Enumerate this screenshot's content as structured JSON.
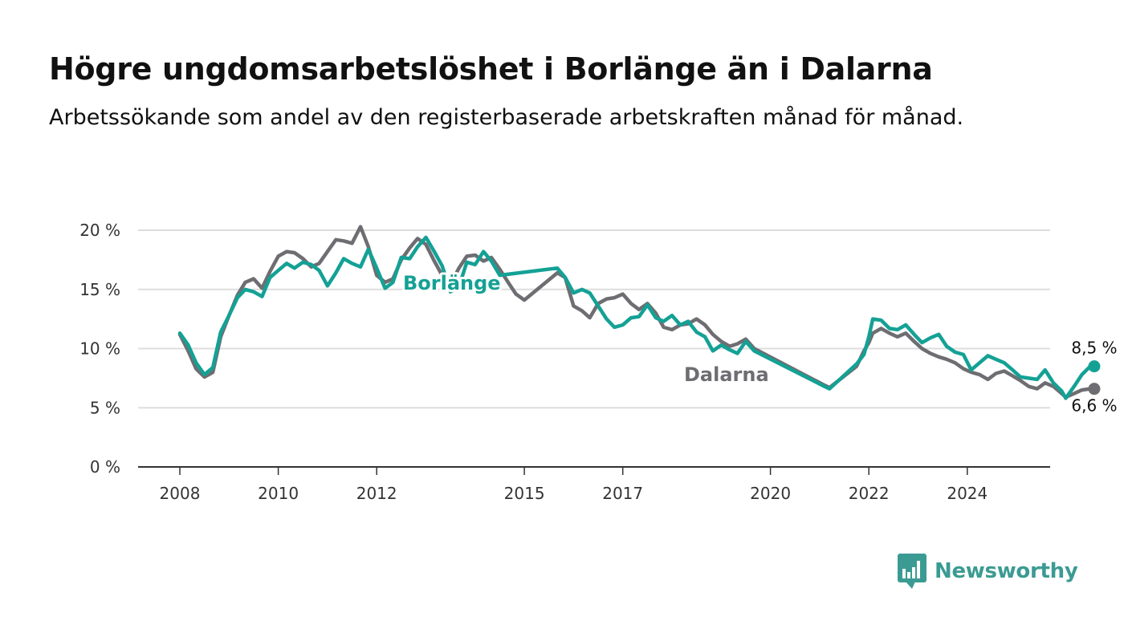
{
  "title": "Högre ungdomsarbetslöshet i Borlänge än i Dalarna",
  "subtitle": "Arbetssökande som andel av den registerbaserade arbetskraften månad för månad.",
  "brand": {
    "name": "Newsworthy",
    "color": "#3b9b93",
    "icon": "bar-chart-speech-bubble-icon"
  },
  "colors": {
    "borlange": "#14a195",
    "dalarna": "#6e6d72",
    "grid": "#dddddd",
    "axis": "#333333"
  },
  "chart_data": {
    "type": "line",
    "title": "Högre ungdomsarbetslöshet i Borlänge än i Dalarna",
    "subtitle": "Arbetssökande som andel av den registerbaserade arbetskraften månad för månad.",
    "xlabel": "",
    "ylabel": "",
    "xlim": [
      2008,
      2025.5
    ],
    "ylim": [
      0,
      20
    ],
    "x_ticks": [
      2008,
      2010,
      2012,
      2015,
      2017,
      2020,
      2022,
      2024
    ],
    "y_ticks": [
      {
        "value": 0,
        "label": "0 %"
      },
      {
        "value": 5,
        "label": "5 %"
      },
      {
        "value": 10,
        "label": "10 %"
      },
      {
        "value": 15,
        "label": "15 %"
      },
      {
        "value": 20,
        "label": "20 %"
      }
    ],
    "grid": "horizontal",
    "legend": "inline labels",
    "series": [
      {
        "name": "Borlänge",
        "color": "#14a195",
        "end_label": "8,5 %",
        "points": [
          [
            2008.0,
            11.3
          ],
          [
            2008.17,
            10.3
          ],
          [
            2008.33,
            8.8
          ],
          [
            2008.5,
            7.8
          ],
          [
            2008.67,
            8.4
          ],
          [
            2008.83,
            11.4
          ],
          [
            2009.0,
            12.8
          ],
          [
            2009.17,
            14.3
          ],
          [
            2009.33,
            15.0
          ],
          [
            2009.5,
            14.8
          ],
          [
            2009.67,
            14.4
          ],
          [
            2009.83,
            16.0
          ],
          [
            2010.0,
            16.6
          ],
          [
            2010.17,
            17.2
          ],
          [
            2010.33,
            16.8
          ],
          [
            2010.5,
            17.3
          ],
          [
            2010.67,
            17.1
          ],
          [
            2010.83,
            16.6
          ],
          [
            2011.0,
            15.3
          ],
          [
            2011.17,
            16.4
          ],
          [
            2011.33,
            17.6
          ],
          [
            2011.5,
            17.2
          ],
          [
            2011.67,
            16.9
          ],
          [
            2011.83,
            18.4
          ],
          [
            2012.0,
            16.8
          ],
          [
            2012.17,
            15.1
          ],
          [
            2012.33,
            15.6
          ],
          [
            2012.5,
            17.7
          ],
          [
            2012.67,
            17.6
          ],
          [
            2012.83,
            18.6
          ],
          [
            2013.0,
            19.4
          ],
          [
            2013.17,
            18.2
          ],
          [
            2013.33,
            17.0
          ],
          [
            2013.5,
            14.8
          ],
          [
            2013.67,
            15.2
          ],
          [
            2013.83,
            17.3
          ],
          [
            2014.0,
            17.1
          ],
          [
            2014.17,
            18.2
          ],
          [
            2014.33,
            17.4
          ],
          [
            2014.5,
            16.2
          ],
          [
            2015.67,
            16.8
          ],
          [
            2015.83,
            16.0
          ],
          [
            2016.0,
            14.7
          ],
          [
            2016.17,
            15.0
          ],
          [
            2016.33,
            14.7
          ],
          [
            2016.5,
            13.6
          ],
          [
            2016.67,
            12.5
          ],
          [
            2016.83,
            11.8
          ],
          [
            2017.0,
            12.0
          ],
          [
            2017.17,
            12.6
          ],
          [
            2017.33,
            12.7
          ],
          [
            2017.5,
            13.7
          ],
          [
            2017.67,
            12.6
          ],
          [
            2017.83,
            12.3
          ],
          [
            2018.0,
            12.8
          ],
          [
            2018.17,
            12.0
          ],
          [
            2018.33,
            12.3
          ],
          [
            2018.5,
            11.4
          ],
          [
            2018.67,
            11.0
          ],
          [
            2018.83,
            9.8
          ],
          [
            2019.0,
            10.3
          ],
          [
            2019.17,
            9.9
          ],
          [
            2019.33,
            9.6
          ],
          [
            2019.5,
            10.6
          ],
          [
            2019.67,
            9.8
          ],
          [
            2021.1,
            6.8
          ],
          [
            2021.2,
            6.6
          ],
          [
            2021.75,
            8.7
          ],
          [
            2021.9,
            9.5
          ],
          [
            2022.0,
            11.0
          ],
          [
            2022.08,
            12.5
          ],
          [
            2022.25,
            12.4
          ],
          [
            2022.42,
            11.7
          ],
          [
            2022.58,
            11.6
          ],
          [
            2022.75,
            12.0
          ],
          [
            2022.92,
            11.2
          ],
          [
            2023.08,
            10.5
          ],
          [
            2023.25,
            10.9
          ],
          [
            2023.42,
            11.2
          ],
          [
            2023.58,
            10.2
          ],
          [
            2023.75,
            9.7
          ],
          [
            2023.92,
            9.5
          ],
          [
            2024.08,
            8.2
          ],
          [
            2024.25,
            8.8
          ],
          [
            2024.42,
            9.4
          ],
          [
            2024.58,
            9.1
          ],
          [
            2024.75,
            8.8
          ],
          [
            2024.92,
            8.2
          ],
          [
            2025.08,
            7.6
          ],
          [
            2025.25,
            7.5
          ],
          [
            2025.42,
            7.4
          ],
          [
            2025.58,
            8.2
          ],
          [
            2025.75,
            7.1
          ],
          [
            2025.92,
            6.4
          ],
          [
            2026.0,
            5.8
          ],
          [
            2026.17,
            6.8
          ],
          [
            2026.33,
            7.8
          ],
          [
            2026.5,
            8.5
          ],
          [
            2026.58,
            8.5
          ]
        ]
      },
      {
        "name": "Dalarna",
        "color": "#6e6d72",
        "end_label": "6,6 %",
        "points": [
          [
            2008.0,
            11.2
          ],
          [
            2008.17,
            9.8
          ],
          [
            2008.33,
            8.3
          ],
          [
            2008.5,
            7.6
          ],
          [
            2008.67,
            8.0
          ],
          [
            2008.83,
            11.0
          ],
          [
            2009.0,
            12.8
          ],
          [
            2009.17,
            14.5
          ],
          [
            2009.33,
            15.6
          ],
          [
            2009.5,
            15.9
          ],
          [
            2009.67,
            15.1
          ],
          [
            2009.83,
            16.5
          ],
          [
            2010.0,
            17.8
          ],
          [
            2010.17,
            18.2
          ],
          [
            2010.33,
            18.1
          ],
          [
            2010.5,
            17.6
          ],
          [
            2010.67,
            16.9
          ],
          [
            2010.83,
            17.2
          ],
          [
            2011.0,
            18.2
          ],
          [
            2011.17,
            19.2
          ],
          [
            2011.33,
            19.1
          ],
          [
            2011.5,
            18.9
          ],
          [
            2011.67,
            20.3
          ],
          [
            2011.83,
            18.6
          ],
          [
            2012.0,
            16.2
          ],
          [
            2012.17,
            15.6
          ],
          [
            2012.33,
            15.9
          ],
          [
            2012.5,
            17.5
          ],
          [
            2012.67,
            18.5
          ],
          [
            2012.83,
            19.3
          ],
          [
            2013.0,
            18.8
          ],
          [
            2013.17,
            17.4
          ],
          [
            2013.33,
            16.2
          ],
          [
            2013.5,
            15.4
          ],
          [
            2013.67,
            16.8
          ],
          [
            2013.83,
            17.8
          ],
          [
            2014.0,
            17.9
          ],
          [
            2014.17,
            17.4
          ],
          [
            2014.33,
            17.7
          ],
          [
            2014.5,
            16.7
          ],
          [
            2014.67,
            15.6
          ],
          [
            2014.83,
            14.6
          ],
          [
            2015.0,
            14.1
          ],
          [
            2015.67,
            16.4
          ],
          [
            2015.83,
            16.0
          ],
          [
            2016.0,
            13.6
          ],
          [
            2016.17,
            13.2
          ],
          [
            2016.33,
            12.6
          ],
          [
            2016.5,
            13.8
          ],
          [
            2016.67,
            14.2
          ],
          [
            2016.83,
            14.3
          ],
          [
            2017.0,
            14.6
          ],
          [
            2017.17,
            13.8
          ],
          [
            2017.33,
            13.3
          ],
          [
            2017.5,
            13.8
          ],
          [
            2017.67,
            13.0
          ],
          [
            2017.83,
            11.8
          ],
          [
            2018.0,
            11.6
          ],
          [
            2018.17,
            12.0
          ],
          [
            2018.33,
            12.1
          ],
          [
            2018.5,
            12.5
          ],
          [
            2018.67,
            12.0
          ],
          [
            2018.83,
            11.2
          ],
          [
            2019.0,
            10.6
          ],
          [
            2019.17,
            10.2
          ],
          [
            2019.33,
            10.4
          ],
          [
            2019.5,
            10.8
          ],
          [
            2019.67,
            10.0
          ],
          [
            2021.1,
            6.9
          ],
          [
            2021.2,
            6.7
          ],
          [
            2021.75,
            8.5
          ],
          [
            2021.9,
            9.8
          ],
          [
            2022.0,
            10.5
          ],
          [
            2022.08,
            11.3
          ],
          [
            2022.25,
            11.7
          ],
          [
            2022.42,
            11.3
          ],
          [
            2022.58,
            11.0
          ],
          [
            2022.75,
            11.3
          ],
          [
            2022.92,
            10.6
          ],
          [
            2023.08,
            10.0
          ],
          [
            2023.25,
            9.6
          ],
          [
            2023.42,
            9.3
          ],
          [
            2023.58,
            9.1
          ],
          [
            2023.75,
            8.8
          ],
          [
            2023.92,
            8.3
          ],
          [
            2024.08,
            8.0
          ],
          [
            2024.25,
            7.8
          ],
          [
            2024.42,
            7.4
          ],
          [
            2024.58,
            7.9
          ],
          [
            2024.75,
            8.1
          ],
          [
            2024.92,
            7.7
          ],
          [
            2025.08,
            7.3
          ],
          [
            2025.25,
            6.8
          ],
          [
            2025.42,
            6.6
          ],
          [
            2025.58,
            7.1
          ],
          [
            2025.75,
            6.8
          ],
          [
            2025.92,
            6.2
          ],
          [
            2026.0,
            5.9
          ],
          [
            2026.17,
            6.2
          ],
          [
            2026.33,
            6.5
          ],
          [
            2026.5,
            6.6
          ],
          [
            2026.58,
            6.6
          ]
        ]
      }
    ]
  }
}
